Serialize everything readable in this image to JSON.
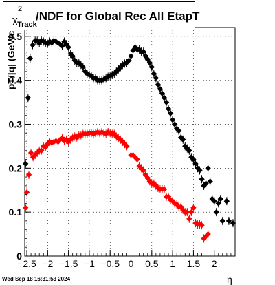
{
  "title": {
    "symbol": "χ",
    "superscript": "2",
    "subscript": "Track",
    "text": "/NDF for Global Rec All EtapT"
  },
  "timestamp": "Wed Sep 18 16:31:53 2024",
  "chart_data": {
    "type": "scatter",
    "xlabel": "η",
    "ylabel": "pT/|q| (GeV/c)",
    "xlim": [
      -2.55,
      2.5
    ],
    "ylim": [
      0,
      0.52
    ],
    "x_ticks": [
      -2.5,
      -2,
      -1.5,
      -1,
      -0.5,
      0,
      0.5,
      1,
      1.5,
      2
    ],
    "x_tick_labels": [
      "−2.5",
      "−2",
      "−1.5",
      "−1",
      "−0.5",
      "0",
      "0.5",
      "1",
      "1.5",
      "2"
    ],
    "y_ticks": [
      0,
      0.1,
      0.2,
      0.3,
      0.4,
      0.5
    ],
    "y_tick_labels": [
      "0",
      "0.1",
      "0.2",
      "0.3",
      "0.4",
      "0.5"
    ],
    "grid": true,
    "marker": "diamond",
    "colors": {
      "black": "#000000",
      "red": "#ff0000"
    },
    "series": [
      {
        "color": "#000000",
        "points": [
          [
            -2.53,
            0.21
          ],
          [
            -2.47,
            0.36
          ],
          [
            -2.42,
            0.45
          ],
          [
            -2.36,
            0.48
          ],
          [
            -2.3,
            0.49
          ],
          [
            -2.25,
            0.49
          ],
          [
            -2.2,
            0.485
          ],
          [
            -2.15,
            0.49
          ],
          [
            -2.1,
            0.488
          ],
          [
            -2.05,
            0.485
          ],
          [
            -2.0,
            0.483
          ],
          [
            -1.95,
            0.488
          ],
          [
            -1.9,
            0.485
          ],
          [
            -1.85,
            0.49
          ],
          [
            -1.8,
            0.488
          ],
          [
            -1.75,
            0.485
          ],
          [
            -1.7,
            0.482
          ],
          [
            -1.65,
            0.478
          ],
          [
            -1.6,
            0.488
          ],
          [
            -1.55,
            0.482
          ],
          [
            -1.5,
            0.475
          ],
          [
            -1.45,
            0.46
          ],
          [
            -1.4,
            0.455
          ],
          [
            -1.35,
            0.445
          ],
          [
            -1.3,
            0.44
          ],
          [
            -1.25,
            0.44
          ],
          [
            -1.2,
            0.435
          ],
          [
            -1.15,
            0.43
          ],
          [
            -1.1,
            0.42
          ],
          [
            -1.05,
            0.415
          ],
          [
            -1.0,
            0.412
          ],
          [
            -0.95,
            0.41
          ],
          [
            -0.9,
            0.405
          ],
          [
            -0.85,
            0.405
          ],
          [
            -0.8,
            0.4
          ],
          [
            -0.75,
            0.4
          ],
          [
            -0.7,
            0.4
          ],
          [
            -0.65,
            0.402
          ],
          [
            -0.6,
            0.405
          ],
          [
            -0.55,
            0.408
          ],
          [
            -0.5,
            0.41
          ],
          [
            -0.45,
            0.412
          ],
          [
            -0.4,
            0.415
          ],
          [
            -0.35,
            0.42
          ],
          [
            -0.3,
            0.425
          ],
          [
            -0.25,
            0.43
          ],
          [
            -0.2,
            0.435
          ],
          [
            -0.15,
            0.438
          ],
          [
            -0.1,
            0.44
          ],
          [
            -0.05,
            0.445
          ],
          [
            0.0,
            0.455
          ],
          [
            0.05,
            0.468
          ],
          [
            0.1,
            0.475
          ],
          [
            0.15,
            0.47
          ],
          [
            0.2,
            0.47
          ],
          [
            0.25,
            0.465
          ],
          [
            0.3,
            0.465
          ],
          [
            0.35,
            0.455
          ],
          [
            0.4,
            0.448
          ],
          [
            0.45,
            0.44
          ],
          [
            0.5,
            0.43
          ],
          [
            0.55,
            0.415
          ],
          [
            0.6,
            0.405
          ],
          [
            0.65,
            0.39
          ],
          [
            0.7,
            0.38
          ],
          [
            0.75,
            0.37
          ],
          [
            0.8,
            0.36
          ],
          [
            0.85,
            0.35
          ],
          [
            0.9,
            0.335
          ],
          [
            0.95,
            0.325
          ],
          [
            1.0,
            0.31
          ],
          [
            1.05,
            0.3
          ],
          [
            1.1,
            0.29
          ],
          [
            1.15,
            0.285
          ],
          [
            1.2,
            0.27
          ],
          [
            1.25,
            0.265
          ],
          [
            1.3,
            0.25
          ],
          [
            1.35,
            0.245
          ],
          [
            1.4,
            0.24
          ],
          [
            1.45,
            0.225
          ],
          [
            1.5,
            0.22
          ],
          [
            1.55,
            0.21
          ],
          [
            1.6,
            0.2
          ],
          [
            1.65,
            0.195
          ],
          [
            1.7,
            0.175
          ],
          [
            1.75,
            0.16
          ],
          [
            1.8,
            0.165
          ],
          [
            1.85,
            0.2
          ],
          [
            1.9,
            0.17
          ],
          [
            1.95,
            0.13
          ],
          [
            2.0,
            0.125
          ],
          [
            2.05,
            0.1
          ],
          [
            2.1,
            0.12
          ],
          [
            2.15,
            0.13
          ],
          [
            2.2,
            0.08
          ],
          [
            2.3,
            0.125
          ],
          [
            2.35,
            0.08
          ],
          [
            2.45,
            0.075
          ]
        ]
      },
      {
        "color": "#ff0000",
        "points": [
          [
            -2.53,
            0.11
          ],
          [
            -2.5,
            0.145
          ],
          [
            -2.45,
            0.185
          ],
          [
            -2.4,
            0.235
          ],
          [
            -2.35,
            0.225
          ],
          [
            -2.3,
            0.23
          ],
          [
            -2.25,
            0.235
          ],
          [
            -2.2,
            0.24
          ],
          [
            -2.15,
            0.24
          ],
          [
            -2.1,
            0.25
          ],
          [
            -2.05,
            0.248
          ],
          [
            -2.0,
            0.255
          ],
          [
            -1.95,
            0.26
          ],
          [
            -1.9,
            0.258
          ],
          [
            -1.85,
            0.26
          ],
          [
            -1.8,
            0.262
          ],
          [
            -1.75,
            0.26
          ],
          [
            -1.7,
            0.265
          ],
          [
            -1.65,
            0.268
          ],
          [
            -1.6,
            0.262
          ],
          [
            -1.55,
            0.265
          ],
          [
            -1.5,
            0.26
          ],
          [
            -1.45,
            0.265
          ],
          [
            -1.4,
            0.27
          ],
          [
            -1.35,
            0.272
          ],
          [
            -1.3,
            0.27
          ],
          [
            -1.25,
            0.275
          ],
          [
            -1.2,
            0.275
          ],
          [
            -1.15,
            0.278
          ],
          [
            -1.1,
            0.278
          ],
          [
            -1.05,
            0.278
          ],
          [
            -1.0,
            0.28
          ],
          [
            -0.95,
            0.28
          ],
          [
            -0.9,
            0.278
          ],
          [
            -0.85,
            0.28
          ],
          [
            -0.8,
            0.282
          ],
          [
            -0.75,
            0.28
          ],
          [
            -0.7,
            0.282
          ],
          [
            -0.65,
            0.28
          ],
          [
            -0.6,
            0.278
          ],
          [
            -0.55,
            0.282
          ],
          [
            -0.5,
            0.28
          ],
          [
            -0.45,
            0.278
          ],
          [
            -0.4,
            0.278
          ],
          [
            -0.35,
            0.272
          ],
          [
            -0.3,
            0.268
          ],
          [
            -0.25,
            0.265
          ],
          [
            -0.2,
            0.26
          ],
          [
            -0.15,
            0.255
          ],
          [
            -0.1,
            0.25
          ],
          [
            0.0,
            0.23
          ],
          [
            0.05,
            0.23
          ],
          [
            0.1,
            0.225
          ],
          [
            0.15,
            0.22
          ],
          [
            0.2,
            0.205
          ],
          [
            0.25,
            0.2
          ],
          [
            0.3,
            0.195
          ],
          [
            0.35,
            0.185
          ],
          [
            0.4,
            0.178
          ],
          [
            0.45,
            0.17
          ],
          [
            0.5,
            0.165
          ],
          [
            0.55,
            0.165
          ],
          [
            0.6,
            0.16
          ],
          [
            0.65,
            0.155
          ],
          [
            0.7,
            0.152
          ],
          [
            0.75,
            0.152
          ],
          [
            0.8,
            0.152
          ],
          [
            0.85,
            0.135
          ],
          [
            0.9,
            0.135
          ],
          [
            0.95,
            0.128
          ],
          [
            1.0,
            0.125
          ],
          [
            1.05,
            0.12
          ],
          [
            1.1,
            0.118
          ],
          [
            1.15,
            0.112
          ],
          [
            1.2,
            0.112
          ],
          [
            1.25,
            0.105
          ],
          [
            1.3,
            0.1
          ],
          [
            1.35,
            0.1
          ],
          [
            1.4,
            0.085
          ],
          [
            1.45,
            0.1
          ],
          [
            1.5,
            0.11
          ],
          [
            1.55,
            0.075
          ],
          [
            1.6,
            0.072
          ],
          [
            1.65,
            0.072
          ],
          [
            1.7,
            0.07
          ],
          [
            1.75,
            0.04
          ],
          [
            1.8,
            0.045
          ],
          [
            1.85,
            0.05
          ]
        ]
      }
    ]
  }
}
